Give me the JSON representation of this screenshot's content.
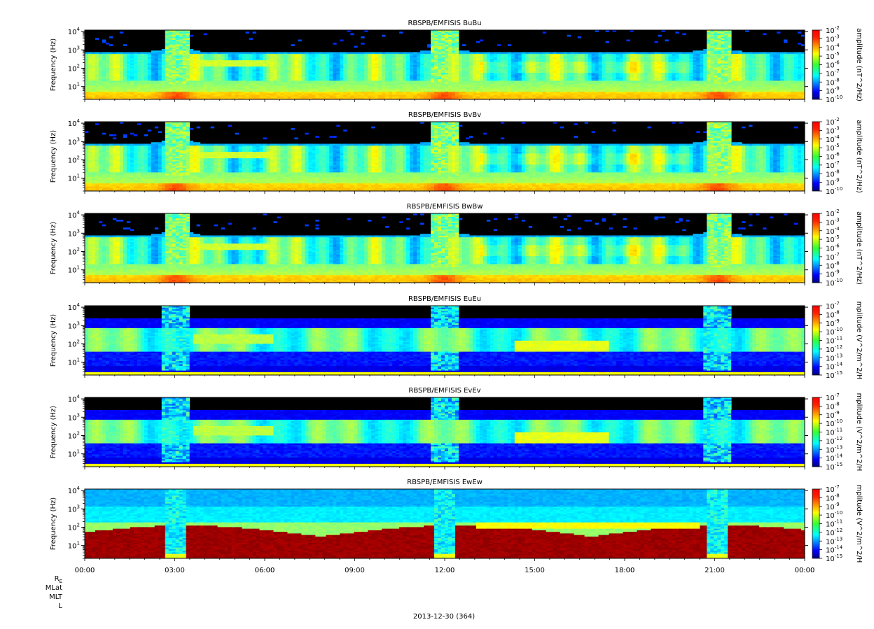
{
  "figure": {
    "date_label": "2013-12-30 (364)",
    "ephemeris_rows": [
      "R",
      "MLat",
      "MLT",
      "L"
    ],
    "ephemeris_subscript": "E"
  },
  "chart_data": [
    {
      "type": "heatmap",
      "title": "RBSPB/EMFISIS  BuBu",
      "ylabel": "Frequency (Hz)",
      "yscale": "log",
      "ylim": [
        2,
        12000
      ],
      "y_ticks": [
        "10",
        "10",
        "10",
        "10"
      ],
      "y_tick_exponents": [
        "1",
        "2",
        "3",
        "4"
      ],
      "colorbar_label": "amplitude (nT^2/Hz)",
      "colorbar_range_exp": [
        -10,
        -2
      ],
      "colorbar_ticks": [
        "10",
        "10",
        "10",
        "10",
        "10",
        "10",
        "10",
        "10",
        "10"
      ],
      "colorbar_exponents": [
        "-2",
        "-3",
        "-4",
        "-5",
        "-6",
        "-7",
        "-8",
        "-9",
        "-10"
      ]
    },
    {
      "type": "heatmap",
      "title": "RBSPB/EMFISIS  BvBv",
      "ylabel": "Frequency (Hz)",
      "yscale": "log",
      "ylim": [
        2,
        12000
      ],
      "y_ticks": [
        "10",
        "10",
        "10",
        "10"
      ],
      "y_tick_exponents": [
        "1",
        "2",
        "3",
        "4"
      ],
      "colorbar_label": "amplitude (nT^2/Hz)",
      "colorbar_range_exp": [
        -10,
        -2
      ],
      "colorbar_ticks": [
        "10",
        "10",
        "10",
        "10",
        "10",
        "10",
        "10",
        "10",
        "10"
      ],
      "colorbar_exponents": [
        "-2",
        "-3",
        "-4",
        "-5",
        "-6",
        "-7",
        "-8",
        "-9",
        "-10"
      ]
    },
    {
      "type": "heatmap",
      "title": "RBSPB/EMFISIS  BwBw",
      "ylabel": "Frequency (Hz)",
      "yscale": "log",
      "ylim": [
        2,
        12000
      ],
      "y_ticks": [
        "10",
        "10",
        "10",
        "10"
      ],
      "y_tick_exponents": [
        "1",
        "2",
        "3",
        "4"
      ],
      "colorbar_label": "amplitude (nT^2/Hz)",
      "colorbar_range_exp": [
        -10,
        -2
      ],
      "colorbar_ticks": [
        "10",
        "10",
        "10",
        "10",
        "10",
        "10",
        "10",
        "10",
        "10"
      ],
      "colorbar_exponents": [
        "-2",
        "-3",
        "-4",
        "-5",
        "-6",
        "-7",
        "-8",
        "-9",
        "-10"
      ]
    },
    {
      "type": "heatmap",
      "title": "RBSPB/EMFISIS  EuEu",
      "ylabel": "Frequency (Hz)",
      "yscale": "log",
      "ylim": [
        2,
        12000
      ],
      "y_ticks": [
        "10",
        "10",
        "10",
        "10"
      ],
      "y_tick_exponents": [
        "1",
        "2",
        "3",
        "4"
      ],
      "colorbar_label": "mplitude (V^2/m^2/H",
      "colorbar_range_exp": [
        -15,
        -7
      ],
      "colorbar_ticks": [
        "10",
        "10",
        "10",
        "10",
        "10",
        "10",
        "10",
        "10",
        "10"
      ],
      "colorbar_exponents": [
        "-7",
        "-8",
        "-9",
        "-10",
        "-11",
        "-12",
        "-13",
        "-14",
        "-15"
      ]
    },
    {
      "type": "heatmap",
      "title": "RBSPB/EMFISIS  EvEv",
      "ylabel": "Frequency (Hz)",
      "yscale": "log",
      "ylim": [
        2,
        12000
      ],
      "y_ticks": [
        "10",
        "10",
        "10",
        "10"
      ],
      "y_tick_exponents": [
        "1",
        "2",
        "3",
        "4"
      ],
      "colorbar_label": "mplitude (V^2/m^2/H",
      "colorbar_range_exp": [
        -15,
        -7
      ],
      "colorbar_ticks": [
        "10",
        "10",
        "10",
        "10",
        "10",
        "10",
        "10",
        "10",
        "10"
      ],
      "colorbar_exponents": [
        "-7",
        "-8",
        "-9",
        "-10",
        "-11",
        "-12",
        "-13",
        "-14",
        "-15"
      ]
    },
    {
      "type": "heatmap",
      "title": "RBSPB/EMFISIS  EwEw",
      "ylabel": "Frequency (Hz)",
      "yscale": "log",
      "ylim": [
        2,
        12000
      ],
      "y_ticks": [
        "10",
        "10",
        "10",
        "10"
      ],
      "y_tick_exponents": [
        "1",
        "2",
        "3",
        "4"
      ],
      "colorbar_label": "mplitude (V^2/m^2/H",
      "colorbar_range_exp": [
        -15,
        -7
      ],
      "colorbar_ticks": [
        "10",
        "10",
        "10",
        "10",
        "10",
        "10",
        "10",
        "10",
        "10"
      ],
      "colorbar_exponents": [
        "-7",
        "-8",
        "-9",
        "-10",
        "-11",
        "-12",
        "-13",
        "-14",
        "-15"
      ]
    }
  ],
  "x_axis": {
    "ticks": [
      "00:00",
      "03:00",
      "06:00",
      "09:00",
      "12:00",
      "15:00",
      "18:00",
      "21:00",
      "00:00"
    ],
    "xlim_hours": [
      0,
      24
    ]
  }
}
